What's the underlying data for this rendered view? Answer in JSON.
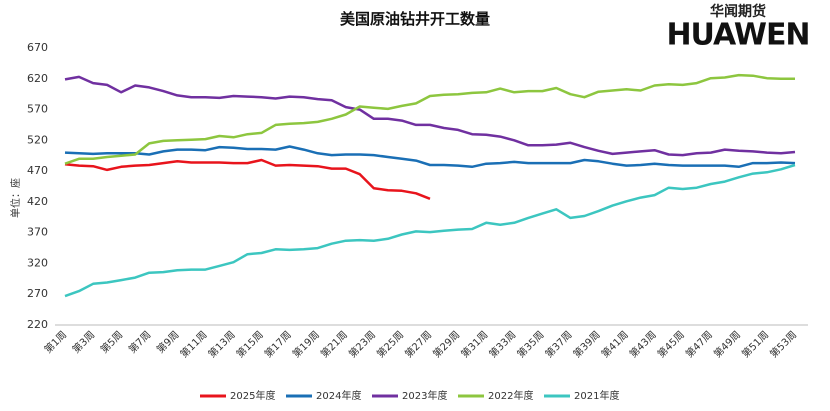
{
  "chart_data": {
    "type": "line",
    "title": "美国原油钻井开工数量",
    "logo": {
      "name": "华闻期货",
      "brand": "HUAWEN"
    },
    "y_label": "单位：座",
    "categories": [
      "第1周",
      null,
      "第3周",
      null,
      "第5周",
      null,
      "第7周",
      null,
      "第9周",
      null,
      "第11周",
      null,
      "第13周",
      null,
      "第15周",
      null,
      "第17周",
      null,
      "第19周",
      null,
      "第21周",
      null,
      "第23周",
      null,
      "第25周",
      null,
      "第27周",
      null,
      "第29周",
      null,
      "第31周",
      null,
      "第33周",
      null,
      "第35周",
      null,
      "第37周",
      null,
      "第39周",
      null,
      "第41周",
      null,
      "第43周",
      null,
      "第45周",
      null,
      "第47周",
      null,
      "第49周",
      null,
      "第51周",
      null,
      "第53周"
    ],
    "ylim": [
      220,
      670
    ],
    "yticks": [
      220,
      270,
      320,
      370,
      420,
      470,
      520,
      570,
      620,
      670
    ],
    "grid": false,
    "series": [
      {
        "name": "2025年度",
        "color": "#e8141c",
        "values": [
          481,
          479,
          478,
          472,
          477,
          479,
          480,
          483,
          486,
          484,
          484,
          484,
          483,
          483,
          488,
          479,
          480,
          479,
          478,
          474,
          474,
          465,
          442,
          439,
          438,
          434,
          425,
          null,
          null,
          null,
          null,
          null,
          null,
          null,
          null,
          null,
          null,
          null,
          null,
          null,
          null,
          null,
          null,
          null,
          null,
          null,
          null,
          null,
          null,
          null,
          null,
          null,
          null
        ]
      },
      {
        "name": "2024年度",
        "color": "#1a6fb5",
        "values": [
          500,
          499,
          498,
          499,
          499,
          499,
          497,
          502,
          505,
          505,
          504,
          509,
          508,
          506,
          506,
          505,
          510,
          505,
          499,
          496,
          497,
          497,
          496,
          493,
          490,
          487,
          480,
          480,
          479,
          477,
          482,
          483,
          485,
          483,
          483,
          483,
          483,
          488,
          486,
          482,
          479,
          480,
          482,
          480,
          479,
          479,
          479,
          479,
          477,
          483,
          483,
          484,
          483
        ]
      },
      {
        "name": "2023年度",
        "color": "#7030a0",
        "values": [
          619,
          623,
          613,
          610,
          598,
          609,
          606,
          600,
          593,
          590,
          590,
          589,
          592,
          591,
          590,
          588,
          591,
          590,
          587,
          585,
          574,
          570,
          555,
          555,
          552,
          545,
          545,
          540,
          537,
          530,
          529,
          526,
          520,
          512,
          512,
          513,
          516,
          509,
          503,
          498,
          500,
          502,
          504,
          497,
          496,
          499,
          500,
          505,
          503,
          502,
          500,
          499,
          501
        ]
      },
      {
        "name": "2022年度",
        "color": "#8dc63f",
        "values": [
          482,
          490,
          490,
          493,
          495,
          497,
          515,
          519,
          520,
          521,
          522,
          527,
          525,
          530,
          532,
          545,
          547,
          548,
          550,
          555,
          562,
          575,
          573,
          571,
          576,
          580,
          592,
          594,
          595,
          597,
          598,
          604,
          598,
          600,
          600,
          605,
          595,
          590,
          599,
          601,
          603,
          601,
          609,
          611,
          610,
          613,
          621,
          622,
          626,
          625,
          621,
          620,
          620
        ]
      },
      {
        "name": "2021年度",
        "color": "#3cc6c0",
        "values": [
          267,
          275,
          287,
          289,
          293,
          297,
          305,
          306,
          309,
          310,
          310,
          316,
          322,
          335,
          337,
          343,
          342,
          343,
          345,
          352,
          357,
          358,
          357,
          360,
          367,
          372,
          371,
          373,
          375,
          376,
          386,
          383,
          386,
          394,
          401,
          408,
          394,
          397,
          405,
          414,
          421,
          427,
          431,
          443,
          441,
          443,
          449,
          453,
          460,
          466,
          468,
          473,
          480
        ]
      }
    ]
  }
}
